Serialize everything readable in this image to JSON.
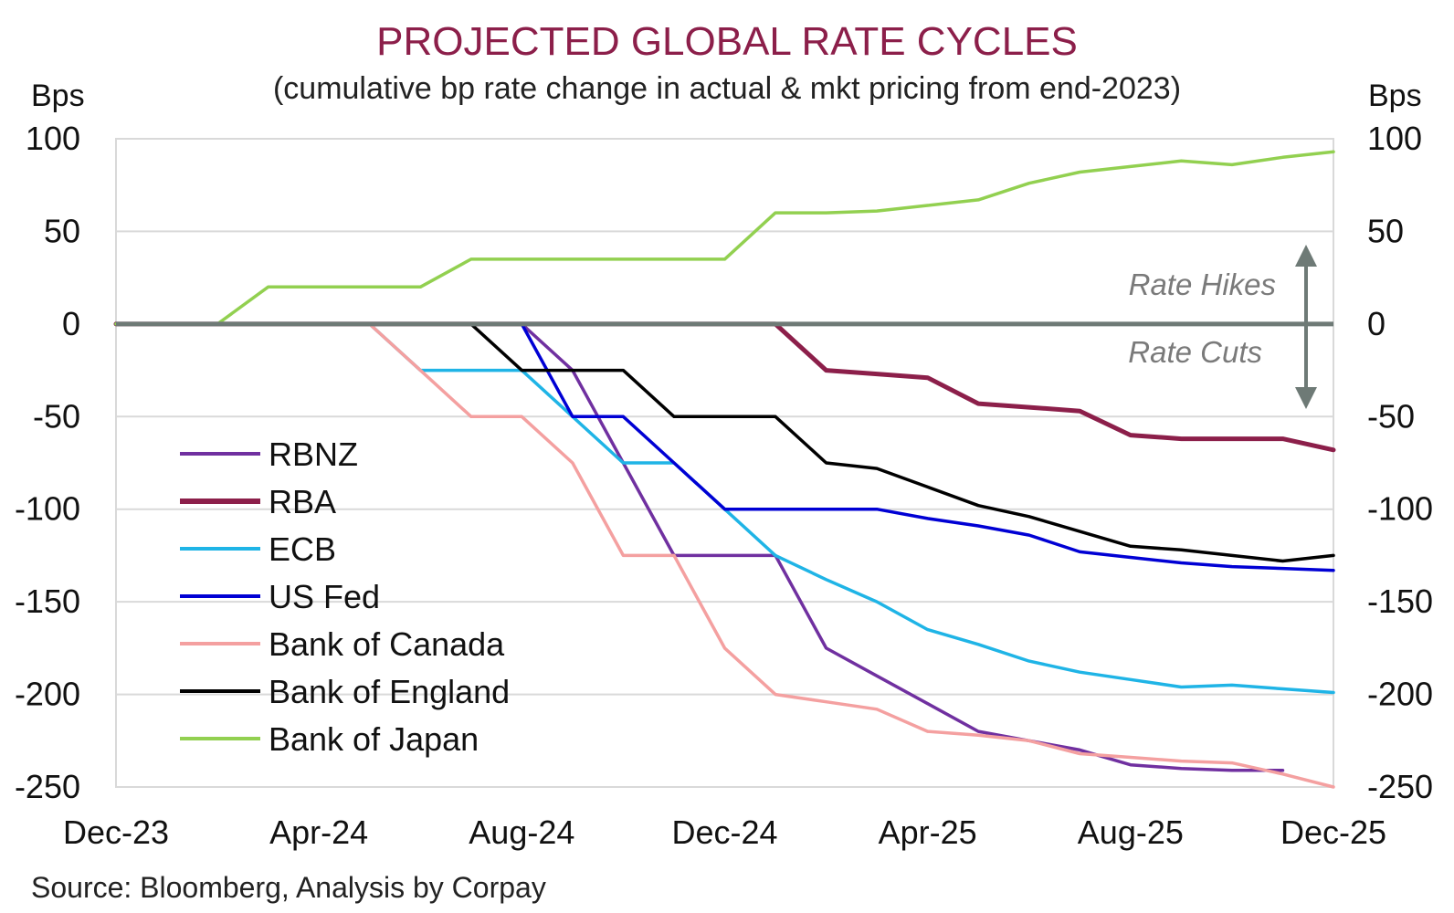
{
  "chart_data": {
    "type": "line",
    "title": "PROJECTED GLOBAL RATE CYCLES",
    "subtitle": "(cumulative bp rate change in actual & mkt pricing from end-2023)",
    "ylabel_left": "Bps",
    "ylabel_right": "Bps",
    "source": "Source: Bloomberg, Analysis by Corpay",
    "ylim": [
      -250,
      100
    ],
    "yticks": [
      100,
      50,
      0,
      -50,
      -100,
      -150,
      -200,
      -250
    ],
    "x_ticks": [
      "Dec-23",
      "Apr-24",
      "Aug-24",
      "Dec-24",
      "Apr-25",
      "Aug-25",
      "Dec-25"
    ],
    "x": [
      "Dec-23",
      "Jan-24",
      "Feb-24",
      "Mar-24",
      "Apr-24",
      "May-24",
      "Jun-24",
      "Jul-24",
      "Aug-24",
      "Sep-24",
      "Oct-24",
      "Nov-24",
      "Dec-24",
      "Jan-25",
      "Feb-25",
      "Mar-25",
      "Apr-25",
      "May-25",
      "Jun-25",
      "Jul-25",
      "Aug-25",
      "Sep-25",
      "Oct-25",
      "Nov-25",
      "Dec-25"
    ],
    "grid": "horizontal",
    "legend_position": "left-bottom",
    "annotations": {
      "hikes": "Rate Hikes",
      "cuts": "Rate Cuts"
    },
    "series": [
      {
        "name": "RBNZ",
        "color": "#7030a0",
        "values": [
          0,
          0,
          0,
          0,
          0,
          0,
          0,
          0,
          0,
          -25,
          -75,
          -125,
          -125,
          -125,
          -175,
          -190,
          -205,
          -220,
          -225,
          -230,
          -238,
          -240,
          -241,
          -241,
          null
        ]
      },
      {
        "name": "RBA",
        "color": "#8c1f4a",
        "values": [
          0,
          0,
          0,
          0,
          0,
          0,
          0,
          0,
          0,
          0,
          0,
          0,
          0,
          0,
          -25,
          -27,
          -29,
          -43,
          -45,
          -47,
          -60,
          -62,
          -62,
          -62,
          -68
        ]
      },
      {
        "name": "ECB",
        "color": "#1fb4e6",
        "values": [
          0,
          0,
          0,
          0,
          0,
          0,
          -25,
          -25,
          -25,
          -50,
          -75,
          -75,
          -100,
          -125,
          -138,
          -150,
          -165,
          -173,
          -182,
          -188,
          -192,
          -196,
          -195,
          -197,
          -199
        ]
      },
      {
        "name": "US Fed",
        "color": "#0000d4",
        "values": [
          0,
          0,
          0,
          0,
          0,
          0,
          0,
          0,
          0,
          -50,
          -50,
          -75,
          -100,
          -100,
          -100,
          -100,
          -105,
          -109,
          -114,
          -123,
          -126,
          -129,
          -131,
          -132,
          -133
        ]
      },
      {
        "name": "Bank of Canada",
        "color": "#f4a0a0",
        "values": [
          0,
          0,
          0,
          0,
          0,
          0,
          -25,
          -50,
          -50,
          -75,
          -125,
          -125,
          -175,
          -200,
          -204,
          -208,
          -220,
          -222,
          -225,
          -232,
          -234,
          -236,
          -237,
          -243,
          -250
        ]
      },
      {
        "name": "Bank of England",
        "color": "#000000",
        "values": [
          0,
          0,
          0,
          0,
          0,
          0,
          0,
          0,
          -25,
          -25,
          -25,
          -50,
          -50,
          -50,
          -75,
          -78,
          -88,
          -98,
          -104,
          -112,
          -120,
          -122,
          -125,
          -128,
          -125
        ]
      },
      {
        "name": "Bank of Japan",
        "color": "#92d050",
        "values": [
          0,
          0,
          0,
          20,
          20,
          20,
          20,
          35,
          35,
          35,
          35,
          35,
          35,
          60,
          60,
          61,
          64,
          67,
          76,
          82,
          85,
          88,
          86,
          90,
          93
        ]
      }
    ]
  }
}
